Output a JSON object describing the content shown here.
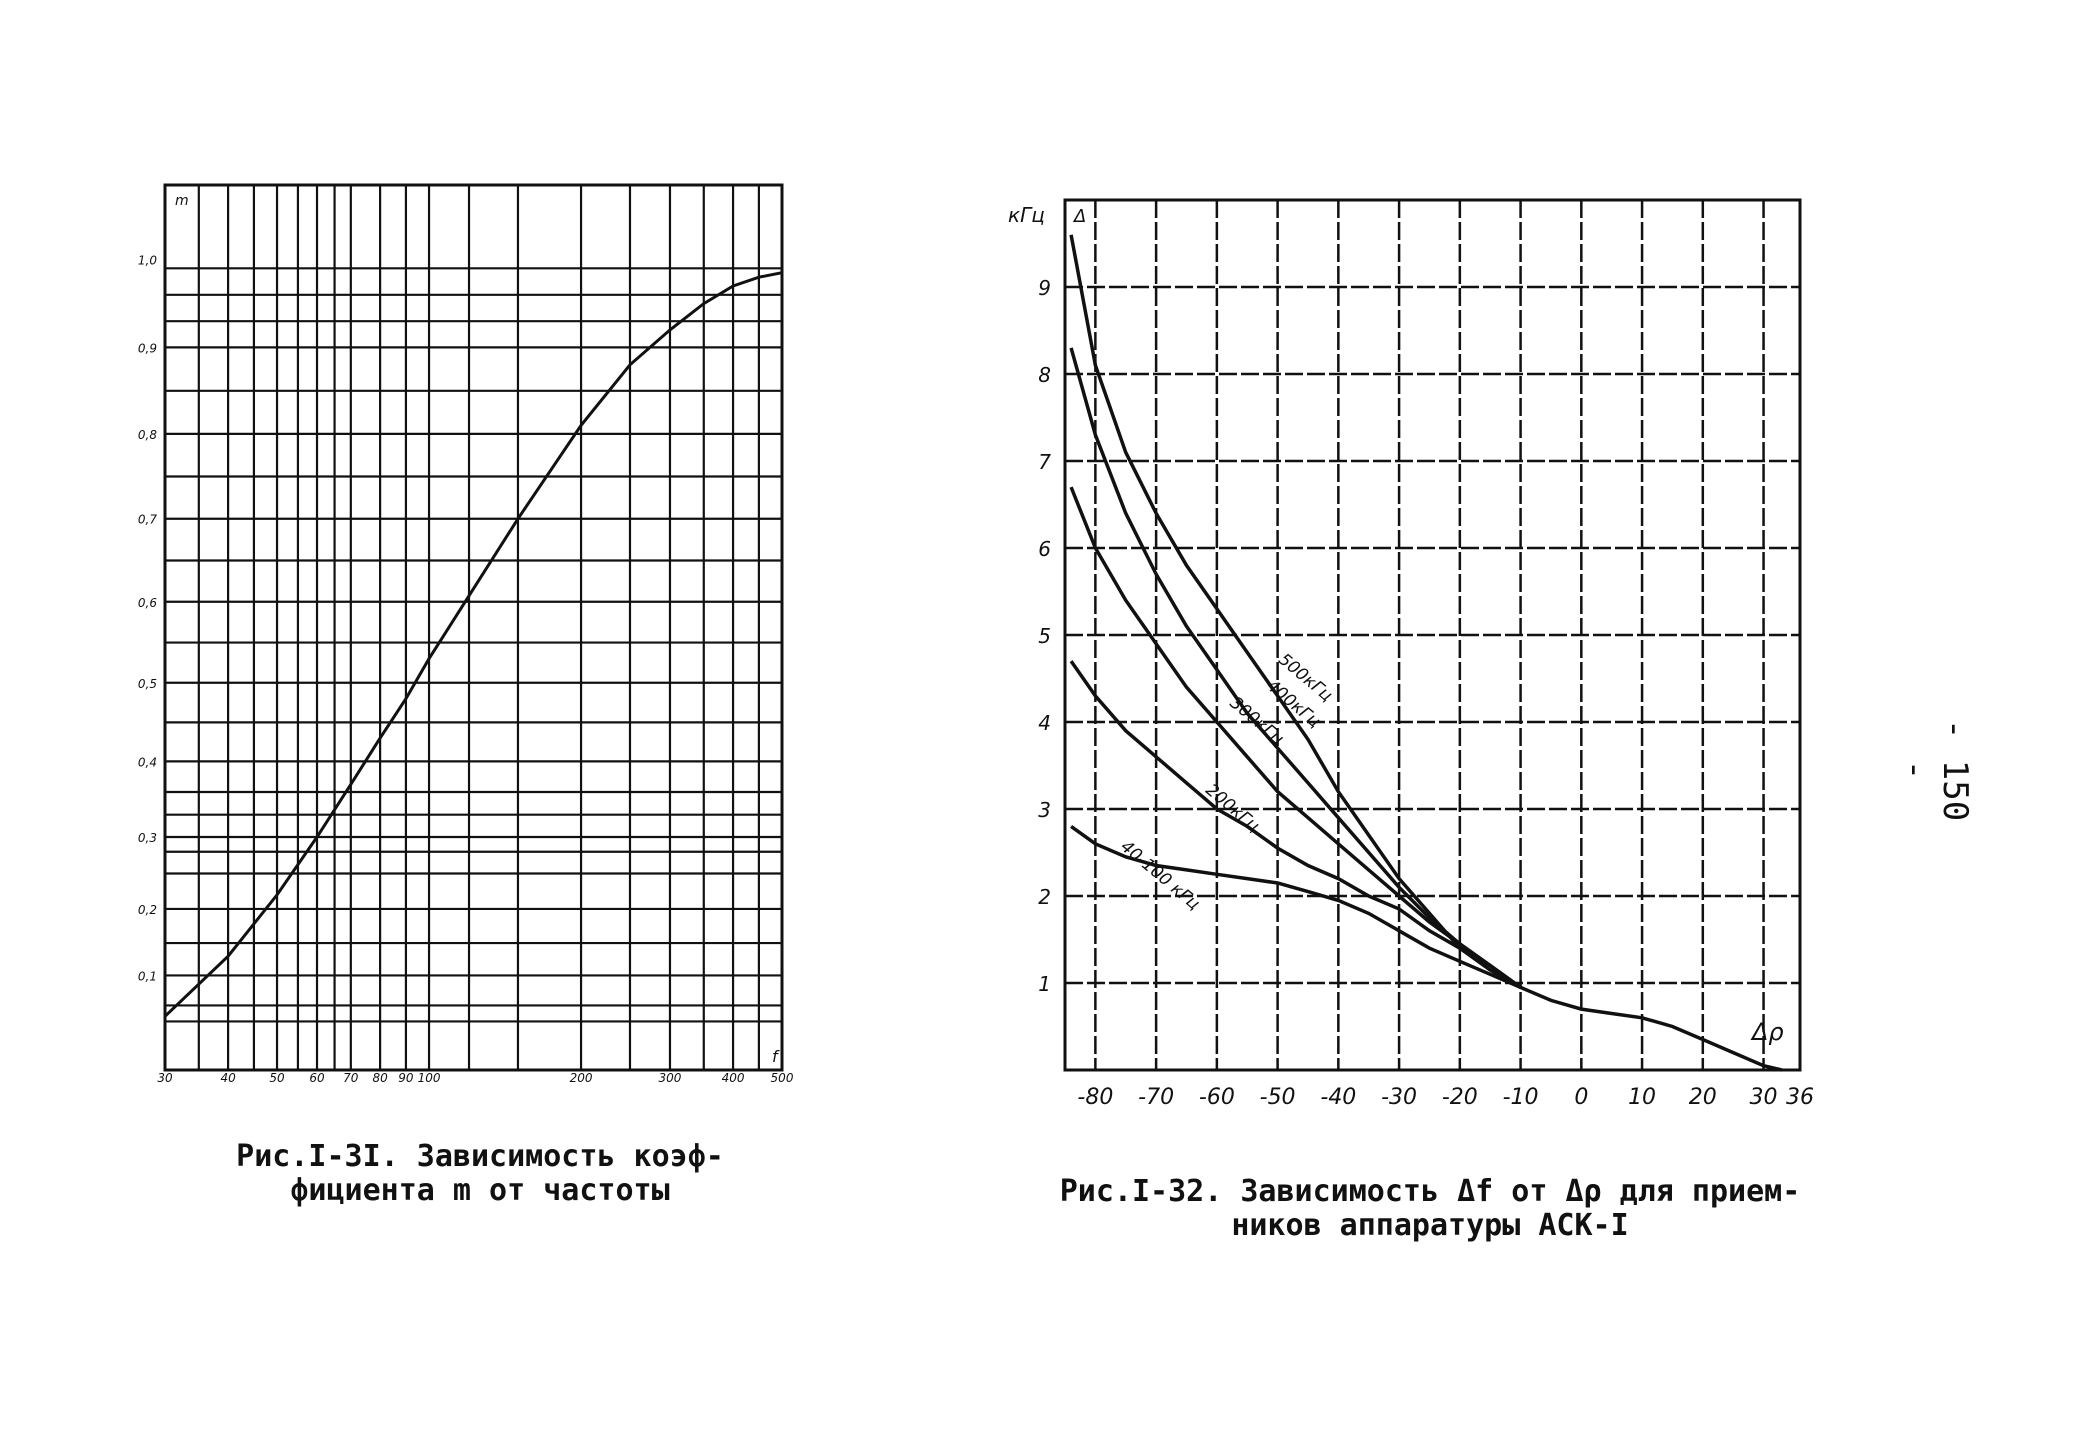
{
  "page_number": "- 150 -",
  "captions": {
    "left": [
      "Рис.I-3I. Зависимость коэф-",
      "фициента m от частоты"
    ],
    "right": [
      "Рис.I-32. Зависимость Δf от Δρ для прием-",
      "ников аппаратуры АСК-I"
    ]
  },
  "chart_data": [
    {
      "type": "line",
      "title": "",
      "xlabel": "f",
      "ylabel": "m",
      "x_ticks": [
        "30",
        "40",
        "50",
        "60",
        "70",
        "80",
        "90",
        "100",
        "200",
        "300",
        "400",
        "500"
      ],
      "y_ticks": [
        "1,0",
        "0,9",
        "0,8",
        "0,7",
        "0,6",
        "0,5",
        "0,4",
        "0,3",
        "0,2",
        "0,1"
      ],
      "grid": true,
      "series": [
        {
          "x": [
            30,
            40,
            50,
            60,
            70,
            80,
            90,
            100,
            150,
            200,
            250,
            300,
            350,
            400,
            450,
            500
          ],
          "y": [
            0.03,
            0.13,
            0.22,
            0.3,
            0.37,
            0.43,
            0.48,
            0.53,
            0.7,
            0.81,
            0.88,
            0.92,
            0.95,
            0.97,
            0.98,
            0.985
          ]
        }
      ]
    },
    {
      "type": "line",
      "title": "",
      "xlabel": "Δρ",
      "ylabel": "кГц",
      "ylabel_sub": "Δ",
      "x_ticks": [
        "-80",
        "-70",
        "-60",
        "-50",
        "-40",
        "-30",
        "-20",
        "-10",
        "0",
        "10",
        "20",
        "30",
        "36"
      ],
      "y_ticks": [
        "1",
        "2",
        "3",
        "4",
        "5",
        "6",
        "7",
        "8",
        "9"
      ],
      "xlim": [
        -85,
        36
      ],
      "ylim": [
        0,
        10
      ],
      "grid": true,
      "series": [
        {
          "name": "500кГц",
          "label_x": -50,
          "label_y": 4.7,
          "x": [
            -84,
            -80,
            -75,
            -70,
            -65,
            -60,
            -55,
            -50,
            -45,
            -40,
            -35,
            -30,
            -25,
            -20,
            -15,
            -10,
            -5,
            0,
            5,
            10,
            15,
            20,
            25,
            30,
            33
          ],
          "y": [
            9.6,
            8.1,
            7.1,
            6.4,
            5.8,
            5.3,
            4.8,
            4.3,
            3.8,
            3.2,
            2.7,
            2.2,
            1.8,
            1.4,
            1.15,
            0.95,
            0.8,
            0.7,
            0.65,
            0.6,
            0.5,
            0.35,
            0.2,
            0.05,
            0.0
          ]
        },
        {
          "name": "400кГц",
          "label_x": -52,
          "label_y": 4.4,
          "x": [
            -84,
            -80,
            -75,
            -70,
            -65,
            -60,
            -55,
            -50,
            -45,
            -40,
            -35,
            -30,
            -25,
            -20,
            -15,
            -10
          ],
          "y": [
            8.3,
            7.3,
            6.4,
            5.7,
            5.1,
            4.6,
            4.1,
            3.7,
            3.3,
            2.9,
            2.5,
            2.1,
            1.75,
            1.45,
            1.2,
            0.95
          ]
        },
        {
          "name": "300кГц",
          "label_x": -58,
          "label_y": 4.2,
          "x": [
            -84,
            -80,
            -75,
            -70,
            -65,
            -60,
            -55,
            -50,
            -45,
            -40,
            -35,
            -30,
            -25,
            -20,
            -15,
            -10
          ],
          "y": [
            6.7,
            6.0,
            5.4,
            4.9,
            4.4,
            4.0,
            3.6,
            3.2,
            2.9,
            2.6,
            2.3,
            2.0,
            1.7,
            1.45,
            1.2,
            0.95
          ]
        },
        {
          "name": "200кГц",
          "label_x": -62,
          "label_y": 3.2,
          "x": [
            -84,
            -80,
            -75,
            -70,
            -65,
            -60,
            -55,
            -50,
            -45,
            -40,
            -35,
            -30,
            -25,
            -20,
            -15,
            -10
          ],
          "y": [
            4.7,
            4.3,
            3.9,
            3.6,
            3.3,
            3.0,
            2.8,
            2.55,
            2.35,
            2.2,
            2.0,
            1.85,
            1.6,
            1.4,
            1.2,
            0.95
          ]
        },
        {
          "name": "40-100 кГц",
          "label_x": -76,
          "label_y": 2.55,
          "x": [
            -84,
            -80,
            -75,
            -70,
            -65,
            -60,
            -55,
            -50,
            -45,
            -40,
            -35,
            -30,
            -25,
            -20,
            -15,
            -10
          ],
          "y": [
            2.8,
            2.6,
            2.45,
            2.35,
            2.3,
            2.25,
            2.2,
            2.15,
            2.05,
            1.95,
            1.8,
            1.6,
            1.4,
            1.25,
            1.1,
            0.95
          ]
        }
      ]
    }
  ]
}
